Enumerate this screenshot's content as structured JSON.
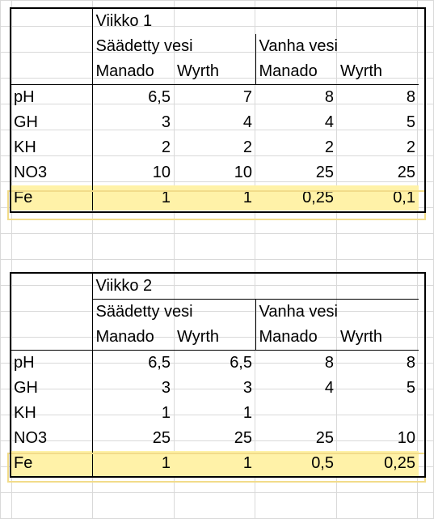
{
  "tables": [
    {
      "title": "Viikko 1",
      "groups": [
        "Säädetty vesi",
        "Vanha vesi"
      ],
      "subheaders": [
        "Manado",
        "Wyrth",
        "Manado",
        "Wyrth"
      ],
      "rows": [
        {
          "label": "pH",
          "values": [
            "6,5",
            "7",
            "8",
            "8"
          ]
        },
        {
          "label": "GH",
          "values": [
            "3",
            "4",
            "4",
            "5"
          ]
        },
        {
          "label": "KH",
          "values": [
            "2",
            "2",
            "2",
            "2"
          ]
        },
        {
          "label": "NO3",
          "values": [
            "10",
            "10",
            "25",
            "25"
          ]
        },
        {
          "label": "Fe",
          "values": [
            "1",
            "1",
            "0,25",
            "0,1"
          ]
        }
      ]
    },
    {
      "title": "Viikko 2",
      "groups": [
        "Säädetty vesi",
        "Vanha vesi"
      ],
      "subheaders": [
        "Manado",
        "Wyrth",
        "Manado",
        "Wyrth"
      ],
      "rows": [
        {
          "label": "pH",
          "values": [
            "6,5",
            "6,5",
            "8",
            "8"
          ]
        },
        {
          "label": "GH",
          "values": [
            "3",
            "3",
            "4",
            "5"
          ]
        },
        {
          "label": "KH",
          "values": [
            "1",
            "1",
            "",
            ""
          ]
        },
        {
          "label": "NO3",
          "values": [
            "25",
            "25",
            "25",
            "10"
          ]
        },
        {
          "label": "Fe",
          "values": [
            "1",
            "1",
            "0,5",
            "0,25"
          ]
        }
      ]
    }
  ],
  "colors": {
    "highlight": "#fff2a8",
    "gridline": "#d9d9d9",
    "border": "#000000"
  }
}
